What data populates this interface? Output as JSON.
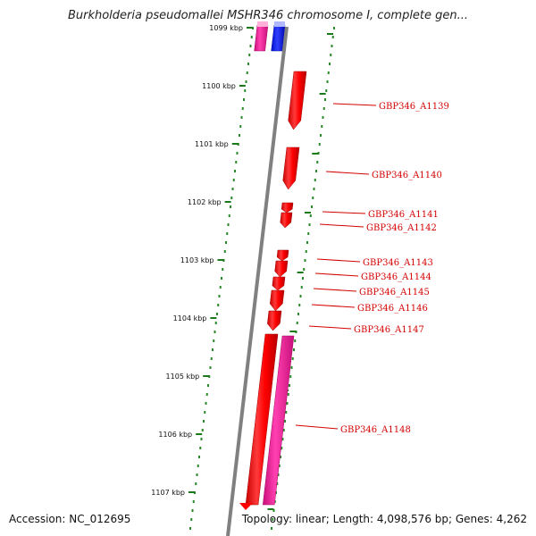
{
  "header": {
    "title": "Burkholderia pseudomallei MSHR346 chromosome I, complete gen..."
  },
  "footer": {
    "accession": "Accession: NC_012695",
    "summary": "Topology: linear; Length: 4,098,576 bp; Genes: 4,262"
  },
  "ruler": {
    "ticks": [
      "1099 kbp",
      "1100 kbp",
      "1101 kbp",
      "1102 kbp",
      "1103 kbp",
      "1104 kbp",
      "1105 kbp",
      "1106 kbp",
      "1107 kbp"
    ]
  },
  "genes": [
    {
      "id": "GBP346_A1139"
    },
    {
      "id": "GBP346_A1140"
    },
    {
      "id": "GBP346_A1141"
    },
    {
      "id": "GBP346_A1142"
    },
    {
      "id": "GBP346_A1143"
    },
    {
      "id": "GBP346_A1144"
    },
    {
      "id": "GBP346_A1145"
    },
    {
      "id": "GBP346_A1146"
    },
    {
      "id": "GBP346_A1147"
    },
    {
      "id": "GBP346_A1148"
    }
  ],
  "colors": {
    "backbone": "#808080",
    "gene": "#ff0000",
    "gene_dark": "#c80000",
    "gene_light": "#ff7070",
    "magenta": "#ff1ea0",
    "magenta_dark": "#cc0f7c",
    "blue": "#0010ff",
    "tick": "#1a7a1a",
    "dot": "#2a8a2a",
    "label": "#d40000"
  }
}
